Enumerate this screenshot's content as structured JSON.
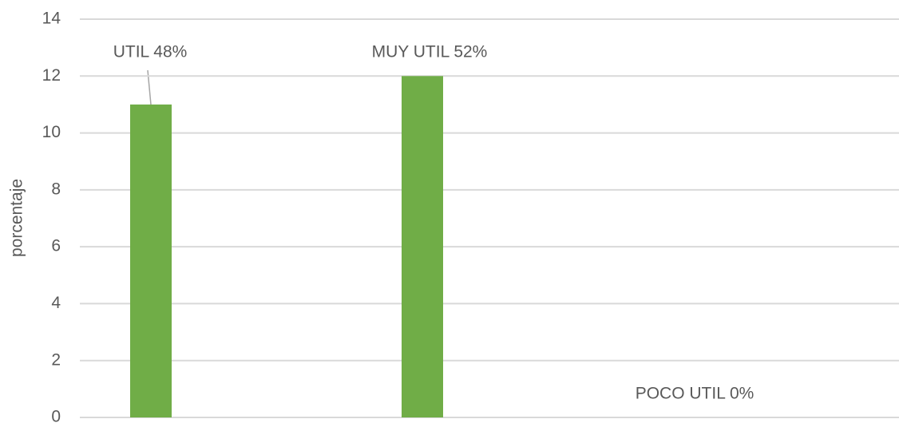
{
  "chart_data": {
    "type": "bar",
    "y_label": "porcentaje",
    "categories": [
      null,
      null,
      null
    ],
    "values": [
      11,
      12,
      0
    ],
    "annotations": [
      "UTIL 48%",
      "MUY UTIL 52%",
      "POCO UTIL 0%"
    ],
    "color": "#70ad47",
    "ylim": [
      0,
      14
    ],
    "yticks": [
      0,
      2,
      4,
      6,
      8,
      10,
      12,
      14
    ],
    "grid": true
  }
}
